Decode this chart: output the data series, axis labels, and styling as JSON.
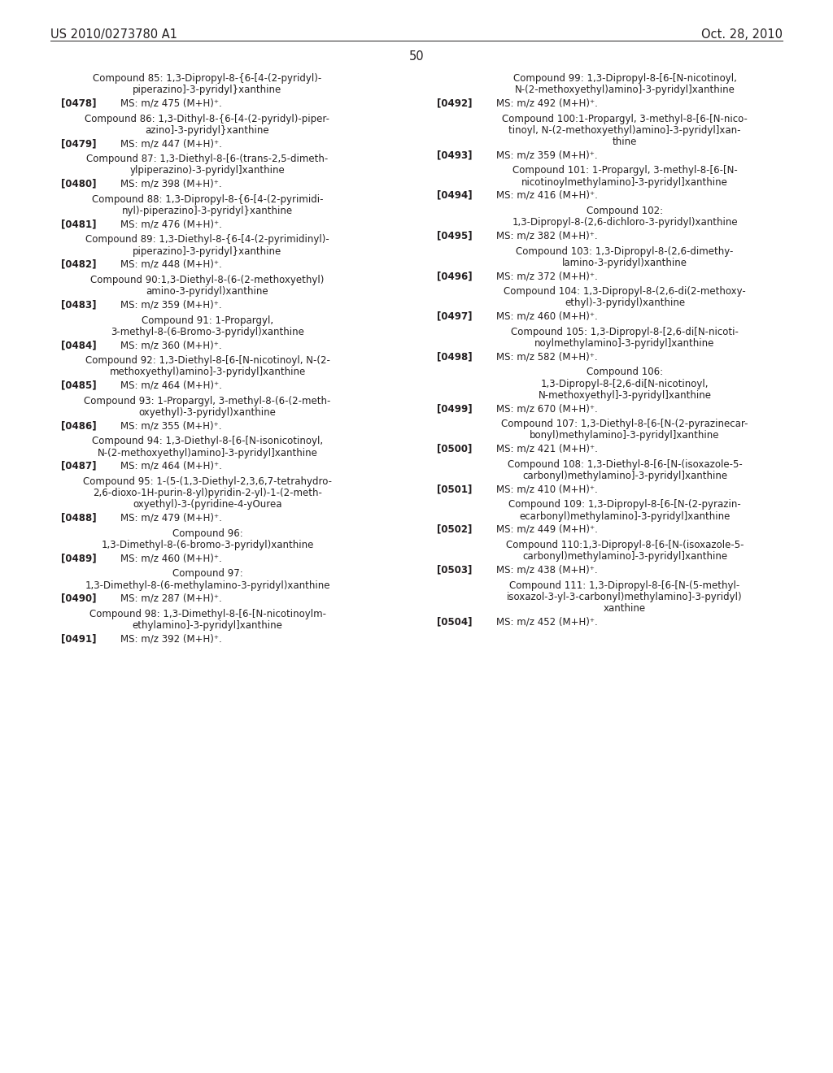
{
  "header_left": "US 2010/0273780 A1",
  "header_right": "Oct. 28, 2010",
  "page_number": "50",
  "background_color": "#ffffff",
  "text_color": "#231f20",
  "left_entries": [
    {
      "type": "compound",
      "lines": [
        "Compound 85: 1,3-Dipropyl-8-{6-[4-(2-pyridyl)-",
        "piperazino]-3-pyridyl}xanthine"
      ]
    },
    {
      "type": "ref",
      "ref": "[0478]",
      "ms": "MS: m/z 475 (M+H)⁺."
    },
    {
      "type": "compound",
      "lines": [
        "Compound 86: 1,3-Dithyl-8-{6-[4-(2-pyridyl)-piper-",
        "azino]-3-pyridyl}xanthine"
      ]
    },
    {
      "type": "ref",
      "ref": "[0479]",
      "ms": "MS: m/z 447 (M+H)⁺."
    },
    {
      "type": "compound",
      "lines": [
        "Compound 87: 1,3-Diethyl-8-[6-(trans-2,5-dimeth-",
        "ylpiperazino)-3-pyridyl]xanthine"
      ]
    },
    {
      "type": "ref",
      "ref": "[0480]",
      "ms": "MS: m/z 398 (M+H)⁺."
    },
    {
      "type": "compound",
      "lines": [
        "Compound 88: 1,3-Dipropyl-8-{6-[4-(2-pyrimidi-",
        "nyl)-piperazino]-3-pyridyl}xanthine"
      ]
    },
    {
      "type": "ref",
      "ref": "[0481]",
      "ms": "MS: m/z 476 (M+H)⁺."
    },
    {
      "type": "compound",
      "lines": [
        "Compound 89: 1,3-Diethyl-8-{6-[4-(2-pyrimidinyl)-",
        "piperazino]-3-pyridyl}xanthine"
      ]
    },
    {
      "type": "ref",
      "ref": "[0482]",
      "ms": "MS: m/z 448 (M+H)⁺."
    },
    {
      "type": "compound",
      "lines": [
        "Compound 90:1,3-Diethyl-8-(6-(2-methoxyethyl)",
        "amino-3-pyridyl)xanthine"
      ]
    },
    {
      "type": "ref",
      "ref": "[0483]",
      "ms": "MS: m/z 359 (M+H)⁺."
    },
    {
      "type": "compound",
      "lines": [
        "Compound 91: 1-Propargyl,",
        "3-methyl-8-(6-Bromo-3-pyridyl)xanthine"
      ]
    },
    {
      "type": "ref",
      "ref": "[0484]",
      "ms": "MS: m/z 360 (M+H)⁺."
    },
    {
      "type": "compound",
      "lines": [
        "Compound 92: 1,3-Diethyl-8-[6-[N-nicotinoyl, N-(2-",
        "methoxyethyl)amino]-3-pyridyl]xanthine"
      ]
    },
    {
      "type": "ref",
      "ref": "[0485]",
      "ms": "MS: m/z 464 (M+H)⁺."
    },
    {
      "type": "compound",
      "lines": [
        "Compound 93: 1-Propargyl, 3-methyl-8-(6-(2-meth-",
        "oxyethyl)-3-pyridyl)xanthine"
      ]
    },
    {
      "type": "ref",
      "ref": "[0486]",
      "ms": "MS: m/z 355 (M+H)⁺."
    },
    {
      "type": "compound",
      "lines": [
        "Compound 94: 1,3-Diethyl-8-[6-[N-isonicotinoyl,",
        "N-(2-methoxyethyl)amino]-3-pyridyl]xanthine"
      ]
    },
    {
      "type": "ref",
      "ref": "[0487]",
      "ms": "MS: m/z 464 (M+H)⁺."
    },
    {
      "type": "compound",
      "lines": [
        "Compound 95: 1-(5-(1,3-Diethyl-2,3,6,7-tetrahydro-",
        "2,6-dioxo-1H-purin-8-yl)pyridin-2-yl)-1-(2-meth-",
        "oxyethyl)-3-(pyridine-4-yOurea"
      ]
    },
    {
      "type": "ref",
      "ref": "[0488]",
      "ms": "MS: m/z 479 (M+H)⁺."
    },
    {
      "type": "compound",
      "lines": [
        "Compound 96:",
        "1,3-Dimethyl-8-(6-bromo-3-pyridyl)xanthine"
      ]
    },
    {
      "type": "ref",
      "ref": "[0489]",
      "ms": "MS: m/z 460 (M+H)⁺."
    },
    {
      "type": "compound",
      "lines": [
        "Compound 97:",
        "1,3-Dimethyl-8-(6-methylamino-3-pyridyl)xanthine"
      ]
    },
    {
      "type": "ref",
      "ref": "[0490]",
      "ms": "MS: m/z 287 (M+H)⁺."
    },
    {
      "type": "compound",
      "lines": [
        "Compound 98: 1,3-Dimethyl-8-[6-[N-nicotinoylm-",
        "ethylamino]-3-pyridyl]xanthine"
      ]
    },
    {
      "type": "ref",
      "ref": "[0491]",
      "ms": "MS: m/z 392 (M+H)⁺."
    }
  ],
  "right_entries": [
    {
      "type": "compound",
      "lines": [
        "Compound 99: 1,3-Dipropyl-8-[6-[N-nicotinoyl,",
        "N-(2-methoxyethyl)amino]-3-pyridyl]xanthine"
      ]
    },
    {
      "type": "ref",
      "ref": "[0492]",
      "ms": "MS: m/z 492 (M+H)⁺."
    },
    {
      "type": "compound",
      "lines": [
        "Compound 100:1-Propargyl, 3-methyl-8-[6-[N-nico-",
        "tinoyl, N-(2-methoxyethyl)amino]-3-pyridyl]xan-",
        "thine"
      ]
    },
    {
      "type": "ref",
      "ref": "[0493]",
      "ms": "MS: m/z 359 (M+H)⁺."
    },
    {
      "type": "compound",
      "lines": [
        "Compound 101: 1-Propargyl, 3-methyl-8-[6-[N-",
        "nicotinoylmethylamino]-3-pyridyl]xanthine"
      ]
    },
    {
      "type": "ref",
      "ref": "[0494]",
      "ms": "MS: m/z 416 (M+H)⁺."
    },
    {
      "type": "compound",
      "lines": [
        "Compound 102:",
        "1,3-Dipropyl-8-(2,6-dichloro-3-pyridyl)xanthine"
      ]
    },
    {
      "type": "ref",
      "ref": "[0495]",
      "ms": "MS: m/z 382 (M+H)⁺."
    },
    {
      "type": "compound",
      "lines": [
        "Compound 103: 1,3-Dipropyl-8-(2,6-dimethy-",
        "lamino-3-pyridyl)xanthine"
      ]
    },
    {
      "type": "ref",
      "ref": "[0496]",
      "ms": "MS: m/z 372 (M+H)⁺."
    },
    {
      "type": "compound",
      "lines": [
        "Compound 104: 1,3-Dipropyl-8-(2,6-di(2-methoxy-",
        "ethyl)-3-pyridyl)xanthine"
      ]
    },
    {
      "type": "ref",
      "ref": "[0497]",
      "ms": "MS: m/z 460 (M+H)⁺."
    },
    {
      "type": "compound",
      "lines": [
        "Compound 105: 1,3-Dipropyl-8-[2,6-di[N-nicoti-",
        "noylmethylamino]-3-pyridyl]xanthine"
      ]
    },
    {
      "type": "ref",
      "ref": "[0498]",
      "ms": "MS: m/z 582 (M+H)⁺."
    },
    {
      "type": "compound",
      "lines": [
        "Compound 106:",
        "1,3-Dipropyl-8-[2,6-di[N-nicotinoyl,",
        "N-methoxyethyl]-3-pyridyl]xanthine"
      ]
    },
    {
      "type": "ref",
      "ref": "[0499]",
      "ms": "MS: m/z 670 (M+H)⁺."
    },
    {
      "type": "compound",
      "lines": [
        "Compound 107: 1,3-Diethyl-8-[6-[N-(2-pyrazinecar-",
        "bonyl)methylamino]-3-pyridyl]xanthine"
      ]
    },
    {
      "type": "ref",
      "ref": "[0500]",
      "ms": "MS: m/z 421 (M+H)⁺."
    },
    {
      "type": "compound",
      "lines": [
        "Compound 108: 1,3-Diethyl-8-[6-[N-(isoxazole-5-",
        "carbonyl)methylamino]-3-pyridyl]xanthine"
      ]
    },
    {
      "type": "ref",
      "ref": "[0501]",
      "ms": "MS: m/z 410 (M+H)⁺."
    },
    {
      "type": "compound",
      "lines": [
        "Compound 109: 1,3-Dipropyl-8-[6-[N-(2-pyrazin-",
        "ecarbonyl)methylamino]-3-pyridyl]xanthine"
      ]
    },
    {
      "type": "ref",
      "ref": "[0502]",
      "ms": "MS: m/z 449 (M+H)⁺."
    },
    {
      "type": "compound",
      "lines": [
        "Compound 110:1,3-Dipropyl-8-[6-[N-(isoxazole-5-",
        "carbonyl)methylamino]-3-pyridyl]xanthine"
      ]
    },
    {
      "type": "ref",
      "ref": "[0503]",
      "ms": "MS: m/z 438 (M+H)⁺."
    },
    {
      "type": "compound",
      "lines": [
        "Compound 111: 1,3-Dipropyl-8-[6-[N-(5-methyl-",
        "isoxazol-3-yl-3-carbonyl)methylamino]-3-pyridyl)",
        "xanthine"
      ]
    },
    {
      "type": "ref",
      "ref": "[0504]",
      "ms": "MS: m/z 452 (M+H)⁺."
    }
  ]
}
